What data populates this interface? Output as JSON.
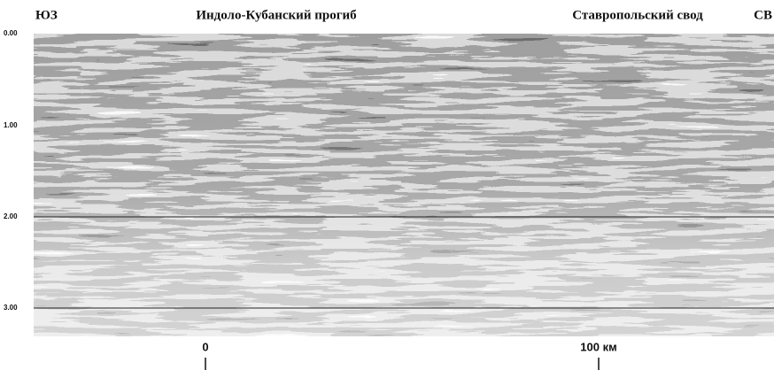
{
  "header": {
    "left": "ЮЗ",
    "title_left": "Индоло-Кубанский прогиб",
    "title_right": "Ставропольский свод",
    "right": "СВ"
  },
  "axis": {
    "labels": [
      "0.00",
      "1.00",
      "2.00",
      "3.00"
    ]
  },
  "scale": {
    "start": "0",
    "end": "100 км"
  }
}
